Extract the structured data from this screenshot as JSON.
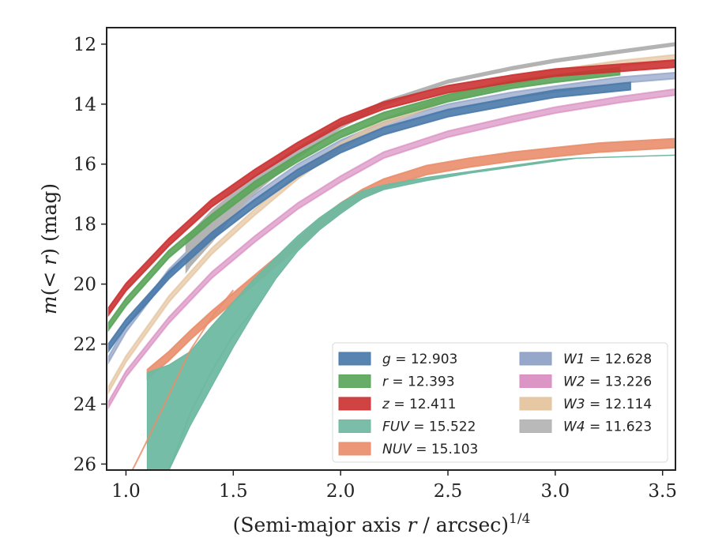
{
  "chart_data": {
    "type": "line",
    "xlabel": "(Semi-major axis r / arcsec)",
    "xlabel_exponent": "1/4",
    "ylabel": "m(< r) (mag)",
    "xlim": [
      0.91,
      3.56
    ],
    "ylim": [
      26.2,
      11.45
    ],
    "y_inverted": true,
    "x_ticks": [
      "1.0",
      "1.5",
      "2.0",
      "2.5",
      "3.0",
      "3.5"
    ],
    "y_ticks": [
      "12",
      "14",
      "16",
      "18",
      "20",
      "22",
      "24",
      "26"
    ],
    "grid": false,
    "legend_position": "lower-right",
    "series": [
      {
        "name": "g",
        "label_value": "= 12.903",
        "color": "#4a7aab",
        "style": "solid",
        "band_width": 0.12,
        "x": [
          0.92,
          1.0,
          1.2,
          1.4,
          1.6,
          1.8,
          2.0,
          2.2,
          2.5,
          2.8,
          3.0,
          3.35
        ],
        "y": [
          22.1,
          21.3,
          19.7,
          18.4,
          17.3,
          16.3,
          15.5,
          14.9,
          14.3,
          13.9,
          13.65,
          13.4
        ]
      },
      {
        "name": "r",
        "label_value": "= 12.393",
        "color": "#5aa55a",
        "style": "solid",
        "band_width": 0.12,
        "x": [
          0.92,
          1.0,
          1.2,
          1.4,
          1.6,
          1.8,
          2.0,
          2.2,
          2.5,
          2.8,
          3.0,
          3.3
        ],
        "y": [
          21.4,
          20.6,
          19.0,
          17.8,
          16.7,
          15.8,
          15.0,
          14.4,
          13.8,
          13.35,
          13.15,
          12.9
        ]
      },
      {
        "name": "z",
        "label_value": "= 12.411",
        "color": "#cc3333",
        "style": "solid",
        "band_width": 0.12,
        "x": [
          0.92,
          1.0,
          1.2,
          1.4,
          1.6,
          1.8,
          2.0,
          2.2,
          2.5,
          2.8,
          3.0,
          3.56
        ],
        "y": [
          20.9,
          20.1,
          18.6,
          17.3,
          16.3,
          15.4,
          14.6,
          14.05,
          13.5,
          13.15,
          12.95,
          12.65
        ]
      },
      {
        "name": "FUV",
        "label_value": "= 15.522",
        "color": "#6fb9a2",
        "style": "band",
        "x": [
          1.1,
          1.2,
          1.3,
          1.4,
          1.5,
          1.6,
          1.7,
          1.8,
          1.9,
          2.0,
          2.1,
          2.2,
          2.4,
          2.6,
          2.8,
          3.0,
          3.1,
          3.56
        ],
        "y_upper": [
          22.95,
          22.7,
          22.25,
          21.4,
          20.6,
          19.8,
          19.1,
          18.4,
          17.8,
          17.3,
          16.9,
          16.7,
          16.45,
          16.25,
          16.05,
          15.85,
          15.8,
          15.7
        ],
        "y_lower": [
          26.2,
          26.2,
          24.7,
          23.4,
          22.1,
          20.9,
          19.8,
          18.9,
          18.2,
          17.65,
          17.15,
          16.85,
          16.55,
          16.3,
          16.1,
          15.9,
          15.8,
          15.7
        ]
      },
      {
        "name": "NUV",
        "label_value": "= 15.103",
        "color": "#e98e6b",
        "style": "solid",
        "band_width": 0.15,
        "x": [
          1.1,
          1.2,
          1.3,
          1.4,
          1.5,
          1.6,
          1.7,
          1.8,
          1.9,
          2.0,
          2.1,
          2.2,
          2.4,
          2.6,
          2.8,
          3.0,
          3.2,
          3.56
        ],
        "y": [
          23.0,
          22.4,
          21.7,
          21.05,
          20.45,
          19.85,
          19.25,
          18.65,
          18.0,
          17.45,
          17.0,
          16.65,
          16.2,
          15.95,
          15.75,
          15.6,
          15.45,
          15.3
        ]
      },
      {
        "name": "W1",
        "label_value": "= 12.628",
        "color": "#8d9fc6",
        "style": "faint",
        "band_width": 0.1,
        "x": [
          0.92,
          1.0,
          1.2,
          1.4,
          1.6,
          1.8,
          2.0,
          2.2,
          2.5,
          2.8,
          3.0,
          3.3,
          3.56
        ],
        "y": [
          22.5,
          21.5,
          19.6,
          18.2,
          17.1,
          16.1,
          15.3,
          14.7,
          14.1,
          13.7,
          13.5,
          13.2,
          13.05
        ]
      },
      {
        "name": "W2",
        "label_value": "= 13.226",
        "color": "#d98dc0",
        "style": "faint",
        "band_width": 0.1,
        "x": [
          0.92,
          1.0,
          1.2,
          1.4,
          1.6,
          1.8,
          2.0,
          2.2,
          2.5,
          2.8,
          3.0,
          3.3,
          3.56
        ],
        "y": [
          24.0,
          23.0,
          21.2,
          19.7,
          18.5,
          17.4,
          16.5,
          15.7,
          15.0,
          14.5,
          14.2,
          13.85,
          13.6
        ]
      },
      {
        "name": "W3",
        "label_value": "= 12.114",
        "color": "#e4c39d",
        "style": "faint",
        "band_width": 0.1,
        "x": [
          0.92,
          1.0,
          1.2,
          1.4,
          1.6,
          1.8,
          2.0,
          2.2,
          2.5,
          2.8,
          3.0,
          3.3,
          3.56
        ],
        "y": [
          23.5,
          22.5,
          20.5,
          18.9,
          17.6,
          16.4,
          15.4,
          14.6,
          13.8,
          13.25,
          12.95,
          12.65,
          12.45
        ]
      },
      {
        "name": "W4",
        "label_value": "= 11.623",
        "color": "#b3b3b3",
        "style": "band",
        "x": [
          1.28,
          1.3,
          1.4,
          1.5,
          1.6,
          1.8,
          2.0,
          2.2,
          2.5,
          2.8,
          3.0,
          3.3,
          3.56
        ],
        "y_upper": [
          18.45,
          18.3,
          17.55,
          16.95,
          16.4,
          15.45,
          14.6,
          13.9,
          13.2,
          12.75,
          12.5,
          12.2,
          11.95
        ],
        "y_lower": [
          19.6,
          19.4,
          18.6,
          17.7,
          16.95,
          15.8,
          14.8,
          14.05,
          13.3,
          12.85,
          12.6,
          12.3,
          12.05
        ]
      },
      {
        "name": "",
        "color": "#e98e6b",
        "style": "thin",
        "x": [
          1.03,
          1.1,
          1.2,
          1.3,
          1.4,
          1.5
        ],
        "y": [
          26.2,
          25.2,
          23.7,
          22.2,
          21.1,
          20.2
        ]
      },
      {
        "name": "",
        "color": "#6fb9a2",
        "style": "thin",
        "x": [
          1.2,
          1.3,
          1.4,
          1.5,
          1.6
        ],
        "y": [
          26.2,
          24.3,
          22.9,
          21.7,
          20.8
        ]
      }
    ]
  },
  "legend": {
    "left": [
      {
        "sym": "g",
        "val": "= 12.903",
        "color": "#4a7aab"
      },
      {
        "sym": "r",
        "val": "= 12.393",
        "color": "#5aa55a"
      },
      {
        "sym": "z",
        "val": "= 12.411",
        "color": "#cc3333"
      },
      {
        "sym": "FUV",
        "val": "= 15.522",
        "color": "#6fb9a2"
      },
      {
        "sym": "NUV",
        "val": "= 15.103",
        "color": "#e98e6b"
      }
    ],
    "right": [
      {
        "sym": "W1",
        "val": "= 12.628",
        "color": "#8d9fc6"
      },
      {
        "sym": "W2",
        "val": "= 13.226",
        "color": "#d98dc0"
      },
      {
        "sym": "W3",
        "val": "= 12.114",
        "color": "#e4c39d"
      },
      {
        "sym": "W4",
        "val": "= 11.623",
        "color": "#b3b3b3"
      }
    ]
  }
}
